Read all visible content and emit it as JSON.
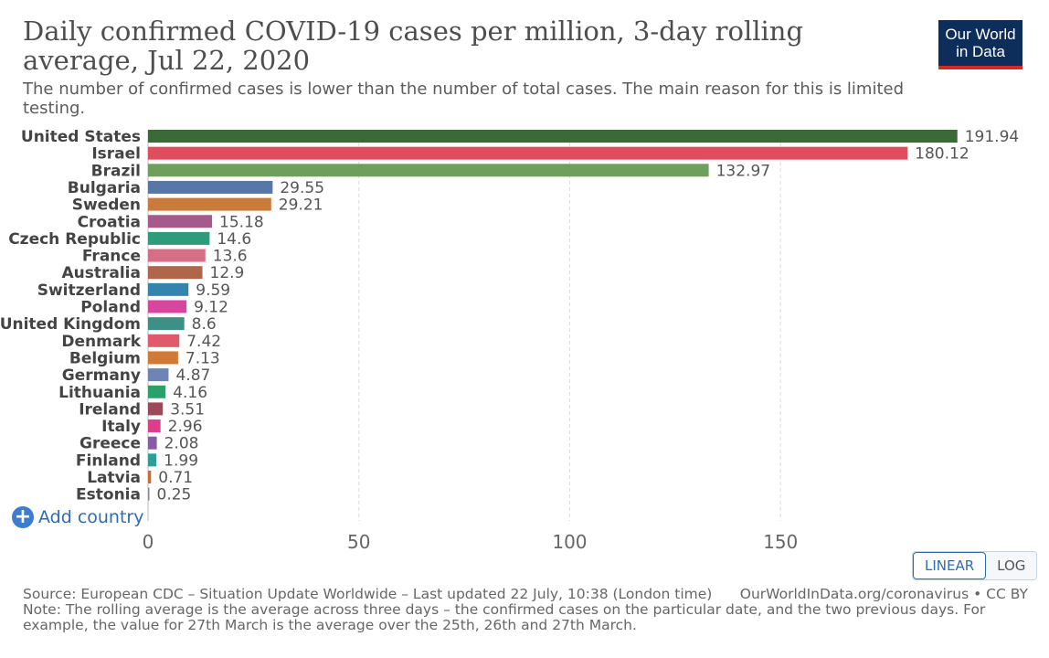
{
  "header": {
    "title": "Daily confirmed COVID-19 cases per million, 3-day rolling average, Jul 22, 2020",
    "subtitle": "The number of confirmed cases is lower than the number of total cases. The main reason for this is limited testing.",
    "logo_line1": "Our World",
    "logo_line2": "in Data"
  },
  "controls": {
    "add_country": "Add country",
    "linear": "LINEAR",
    "log": "LOG"
  },
  "footer": {
    "source": "Source: European CDC – Situation Update Worldwide – Last updated 22 July, 10:38 (London time)",
    "credit": "OurWorldInData.org/coronavirus • CC BY",
    "note": "Note: The rolling average is the average across three days – the confirmed cases on the particular date, and the two previous days. For example, the value for 27th March is the average over the 25th, 26th and 27th March."
  },
  "chart_data": {
    "type": "bar",
    "orientation": "horizontal",
    "title": "Daily confirmed COVID-19 cases per million, 3-day rolling average, Jul 22, 2020",
    "xlim": [
      0,
      192
    ],
    "xticks": [
      0,
      50,
      100,
      150
    ],
    "grid": true,
    "categories": [
      "United States",
      "Israel",
      "Brazil",
      "Bulgaria",
      "Sweden",
      "Croatia",
      "Czech Republic",
      "France",
      "Australia",
      "Switzerland",
      "Poland",
      "United Kingdom",
      "Denmark",
      "Belgium",
      "Germany",
      "Lithuania",
      "Ireland",
      "Italy",
      "Greece",
      "Finland",
      "Latvia",
      "Estonia"
    ],
    "values": [
      191.94,
      180.12,
      132.97,
      29.55,
      29.21,
      15.18,
      14.6,
      13.6,
      12.9,
      9.59,
      9.12,
      8.6,
      7.42,
      7.13,
      4.87,
      4.16,
      3.51,
      2.96,
      2.08,
      1.99,
      0.71,
      0.25
    ],
    "value_labels": [
      "191.94",
      "180.12",
      "132.97",
      "29.55",
      "29.21",
      "15.18",
      "14.6",
      "13.6",
      "12.9",
      "9.59",
      "9.12",
      "8.6",
      "7.42",
      "7.13",
      "4.87",
      "4.16",
      "3.51",
      "2.96",
      "2.08",
      "1.99",
      "0.71",
      "0.25"
    ],
    "colors": [
      "#3a6a36",
      "#e04e5e",
      "#6f9f5c",
      "#5777a8",
      "#c97b3c",
      "#a45a8a",
      "#2e9b7a",
      "#d56f86",
      "#b0664a",
      "#3584ae",
      "#d8459e",
      "#3e8f85",
      "#e15a6a",
      "#cf7a37",
      "#6d84b4",
      "#2aa06a",
      "#9c4a5b",
      "#dd3e8c",
      "#8a5aa8",
      "#2f9e98",
      "#c96b3a",
      "#8a8a8a"
    ]
  }
}
